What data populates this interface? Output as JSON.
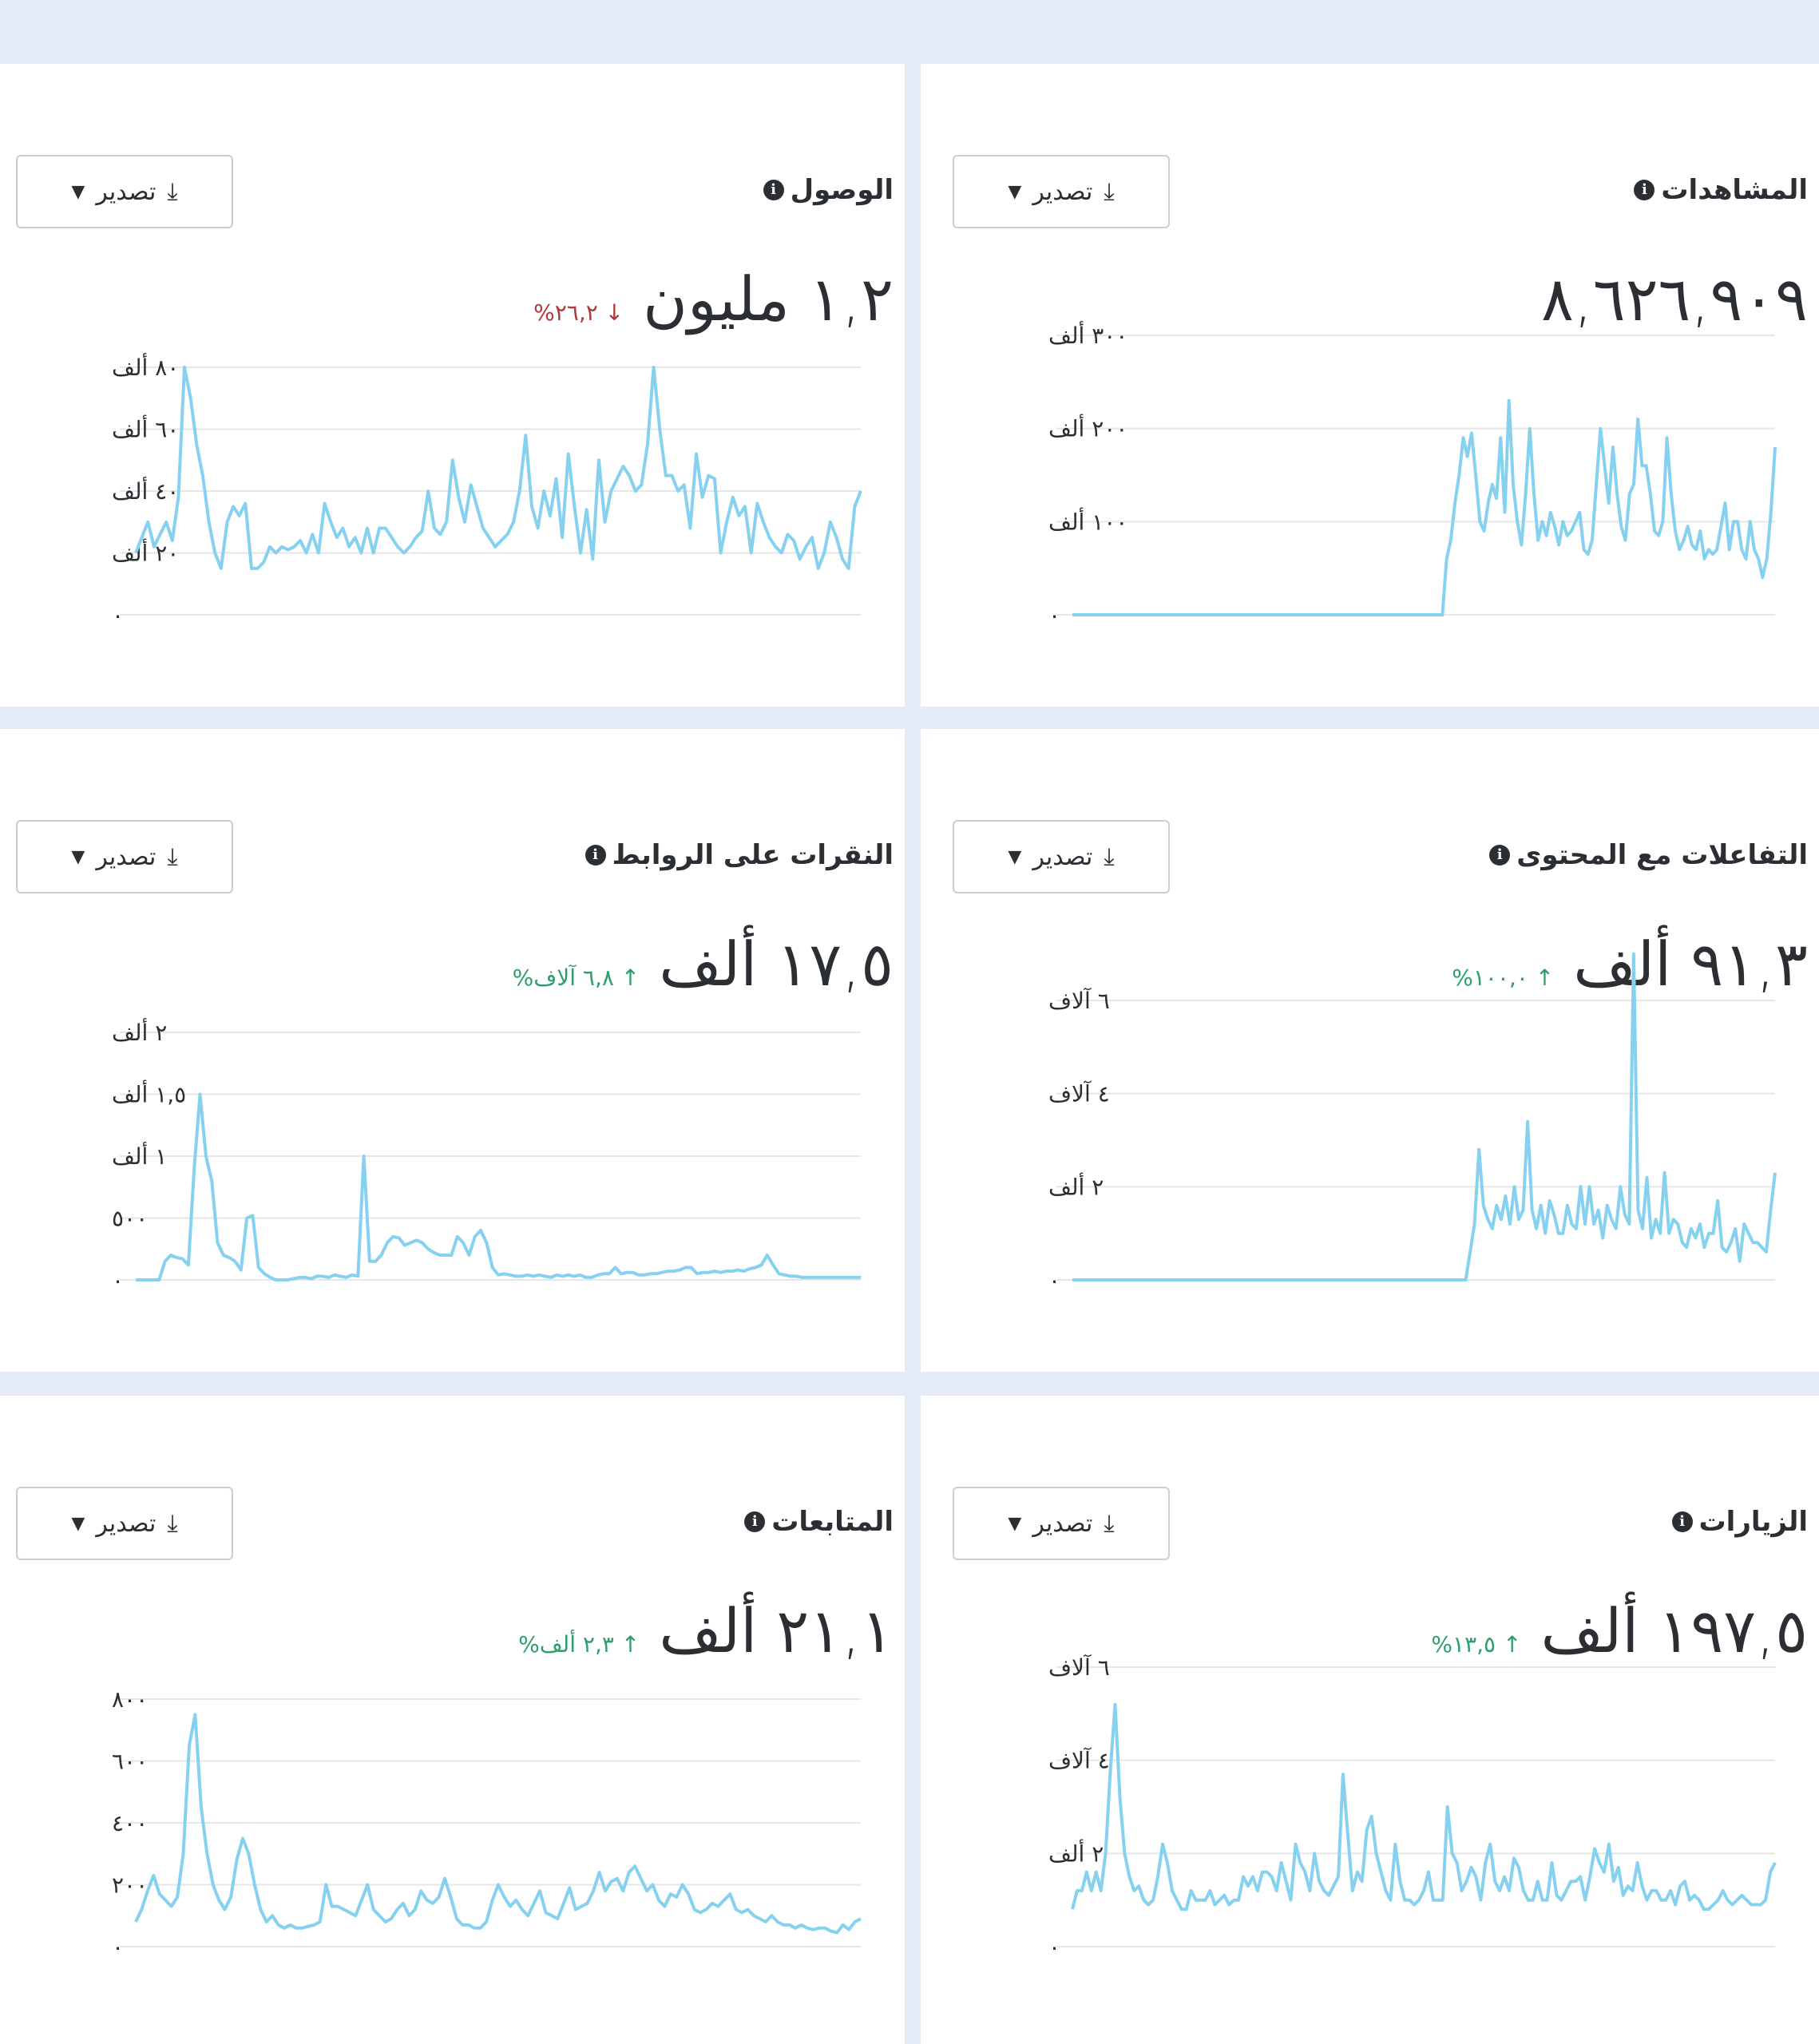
{
  "export_label": "تصدير",
  "icons": {
    "info": "info-icon",
    "export": "download-icon",
    "caret": "caret-down-icon",
    "up": "arrow-up-icon",
    "down": "arrow-down-icon"
  },
  "colors": {
    "line": "#86d1f0",
    "grid": "#e6e6e6",
    "up": "#2e9e6b",
    "down": "#b03a3a",
    "background": "#e4ebf6"
  },
  "cards": [
    {
      "id": "views",
      "title": "المشاهدات",
      "value": "٨,٦٢٦,٩٠٩",
      "delta": "",
      "trend": "",
      "chart_data": {
        "type": "line",
        "y_ticks": [
          0,
          100000,
          200000,
          300000
        ],
        "y_tick_labels": [
          "٠",
          "١٠٠ ألف",
          "٢٠٠ ألف",
          "٣٠٠ ألف"
        ],
        "ylim": [
          0,
          300000
        ],
        "values": [
          0,
          0,
          0,
          0,
          0,
          0,
          0,
          0,
          0,
          0,
          0,
          0,
          0,
          0,
          0,
          0,
          0,
          0,
          0,
          0,
          0,
          0,
          0,
          0,
          0,
          0,
          0,
          0,
          0,
          0,
          0,
          0,
          0,
          0,
          0,
          0,
          0,
          0,
          0,
          0,
          0,
          0,
          0,
          0,
          0,
          0,
          0,
          0,
          0,
          0,
          0,
          0,
          0,
          0,
          0,
          0,
          0,
          0,
          0,
          0,
          0,
          0,
          0,
          0,
          0,
          0,
          0,
          0,
          0,
          0,
          0,
          0,
          0,
          0,
          0,
          0,
          0,
          0,
          0,
          0,
          0,
          0,
          0,
          0,
          0,
          0,
          0,
          0,
          0,
          0,
          60000,
          80000,
          120000,
          150000,
          190000,
          170000,
          195000,
          150000,
          100000,
          90000,
          120000,
          140000,
          125000,
          190000,
          110000,
          230000,
          140000,
          100000,
          75000,
          130000,
          200000,
          130000,
          80000,
          100000,
          85000,
          110000,
          95000,
          75000,
          100000,
          85000,
          90000,
          100000,
          110000,
          70000,
          65000,
          80000,
          140000,
          200000,
          160000,
          120000,
          180000,
          130000,
          95000,
          80000,
          130000,
          140000,
          210000,
          160000,
          160000,
          130000,
          90000,
          85000,
          100000,
          190000,
          130000,
          90000,
          70000,
          80000,
          95000,
          75000,
          70000,
          90000,
          60000,
          70000,
          65000,
          70000,
          95000,
          120000,
          70000,
          100000,
          100000,
          70000,
          60000,
          100000,
          70000,
          60000,
          40000,
          60000,
          110000,
          180000
        ]
      }
    },
    {
      "id": "reach",
      "title": "الوصول",
      "value": "١,٢ مليون",
      "delta": "٢٦,٢%",
      "trend": "down",
      "chart_data": {
        "type": "line",
        "y_ticks": [
          0,
          20000,
          40000,
          60000,
          80000
        ],
        "y_tick_labels": [
          "٠",
          "٢٠ ألف",
          "٤٠ ألف",
          "٦٠ ألف",
          "٨٠ ألف"
        ],
        "ylim": [
          0,
          80000
        ],
        "values": [
          20000,
          25000,
          30000,
          22000,
          26000,
          30000,
          24000,
          38000,
          80000,
          70000,
          55000,
          45000,
          30000,
          20000,
          15000,
          30000,
          35000,
          32000,
          36000,
          15000,
          15000,
          17000,
          22000,
          20000,
          22000,
          21000,
          22000,
          24000,
          20000,
          26000,
          20000,
          36000,
          30000,
          25000,
          28000,
          22000,
          25000,
          20000,
          28000,
          20000,
          28000,
          28000,
          25000,
          22000,
          20000,
          22000,
          25000,
          27000,
          40000,
          28000,
          26000,
          30000,
          50000,
          38000,
          30000,
          42000,
          35000,
          28000,
          25000,
          22000,
          24000,
          26000,
          30000,
          40000,
          58000,
          35000,
          28000,
          40000,
          32000,
          44000,
          25000,
          52000,
          35000,
          20000,
          34000,
          18000,
          50000,
          30000,
          40000,
          44000,
          48000,
          45000,
          40000,
          42000,
          55000,
          80000,
          60000,
          45000,
          45000,
          40000,
          42000,
          28000,
          52000,
          38000,
          45000,
          44000,
          20000,
          30000,
          38000,
          32000,
          35000,
          20000,
          36000,
          30000,
          25000,
          22000,
          20000,
          26000,
          24000,
          18000,
          22000,
          25000,
          15000,
          20000,
          30000,
          25000,
          18000,
          15000,
          35000,
          40000
        ]
      }
    },
    {
      "id": "content-interactions",
      "title": "التفاعلات مع المحتوى",
      "value": "٩١,٣ ألف",
      "delta": "١٠٠,٠%",
      "trend": "up",
      "chart_data": {
        "type": "line",
        "y_ticks": [
          0,
          2000,
          4000,
          6000
        ],
        "y_tick_labels": [
          "٠",
          "٢ ألف",
          "٤ آلاف",
          "٦ آلاف"
        ],
        "ylim": [
          0,
          6000
        ],
        "values": [
          0,
          0,
          0,
          0,
          0,
          0,
          0,
          0,
          0,
          0,
          0,
          0,
          0,
          0,
          0,
          0,
          0,
          0,
          0,
          0,
          0,
          0,
          0,
          0,
          0,
          0,
          0,
          0,
          0,
          0,
          0,
          0,
          0,
          0,
          0,
          0,
          0,
          0,
          0,
          0,
          0,
          0,
          0,
          0,
          0,
          0,
          0,
          0,
          0,
          0,
          0,
          0,
          0,
          0,
          0,
          0,
          0,
          0,
          0,
          0,
          0,
          0,
          0,
          0,
          0,
          0,
          0,
          0,
          0,
          0,
          0,
          0,
          0,
          0,
          0,
          0,
          0,
          0,
          0,
          0,
          0,
          0,
          0,
          0,
          0,
          0,
          0,
          0,
          0,
          0,
          600,
          1200,
          2800,
          1600,
          1300,
          1100,
          1600,
          1300,
          1800,
          1200,
          2000,
          1300,
          1500,
          3400,
          1500,
          1100,
          1600,
          1000,
          1700,
          1400,
          1000,
          1000,
          1600,
          1200,
          1100,
          2000,
          1200,
          2000,
          1200,
          1500,
          900,
          1600,
          1300,
          1100,
          2000,
          1400,
          1200,
          7000,
          1500,
          1100,
          2200,
          900,
          1300,
          1000,
          2300,
          1000,
          1300,
          1200,
          800,
          700,
          1100,
          900,
          1200,
          700,
          1000,
          1000,
          1700,
          700,
          600,
          800,
          1100,
          400,
          1200,
          1000,
          800,
          800,
          700,
          600,
          1500,
          2300
        ]
      }
    },
    {
      "id": "link-clicks",
      "title": "النقرات على الروابط",
      "value": "١٧,٥ ألف",
      "delta": "٦,٨ آلاف%",
      "trend": "up",
      "chart_data": {
        "type": "line",
        "y_ticks": [
          0,
          500,
          1000,
          1500,
          2000
        ],
        "y_tick_labels": [
          "٠",
          "٥٠٠",
          "١ ألف",
          "١,٥ ألف",
          "٢ ألف"
        ],
        "ylim": [
          0,
          2000
        ],
        "values": [
          0,
          0,
          0,
          0,
          0,
          150,
          200,
          180,
          170,
          120,
          900,
          1500,
          1000,
          800,
          300,
          200,
          180,
          150,
          80,
          500,
          520,
          100,
          50,
          20,
          0,
          0,
          0,
          10,
          20,
          20,
          10,
          30,
          30,
          20,
          40,
          30,
          20,
          40,
          30,
          1000,
          150,
          150,
          200,
          300,
          350,
          340,
          280,
          300,
          320,
          300,
          250,
          220,
          200,
          200,
          200,
          350,
          300,
          200,
          350,
          400,
          300,
          100,
          40,
          50,
          40,
          30,
          30,
          40,
          30,
          40,
          30,
          20,
          40,
          30,
          40,
          30,
          40,
          20,
          20,
          40,
          50,
          50,
          100,
          50,
          60,
          60,
          40,
          40,
          50,
          50,
          60,
          70,
          70,
          80,
          100,
          100,
          50,
          60,
          60,
          70,
          60,
          70,
          70,
          80,
          70,
          90,
          100,
          120,
          200,
          120,
          50,
          40,
          30,
          30,
          20,
          20,
          20,
          20,
          20,
          20,
          20,
          20,
          20,
          20,
          20
        ]
      }
    },
    {
      "id": "visits",
      "title": "الزيارات",
      "value": "١٩٧,٥ ألف",
      "delta": "١٣,٥%",
      "trend": "up",
      "chart_data": {
        "type": "line",
        "y_ticks": [
          0,
          2000,
          4000,
          6000
        ],
        "y_tick_labels": [
          "٠",
          "٢ ألف",
          "٤ آلاف",
          "٦ آلاف"
        ],
        "ylim": [
          0,
          6000
        ],
        "values": [
          800,
          1200,
          1200,
          1600,
          1200,
          1600,
          1200,
          2000,
          3800,
          5200,
          3200,
          2000,
          1500,
          1200,
          1300,
          1000,
          900,
          1000,
          1500,
          2200,
          1800,
          1200,
          1000,
          800,
          800,
          1200,
          1000,
          1000,
          1000,
          1200,
          900,
          1000,
          1100,
          900,
          1000,
          1000,
          1500,
          1300,
          1500,
          1200,
          1600,
          1600,
          1500,
          1200,
          1800,
          1400,
          1000,
          2200,
          1800,
          1600,
          1200,
          2000,
          1400,
          1200,
          1100,
          1300,
          1500,
          3700,
          2400,
          1200,
          1600,
          1400,
          2500,
          2800,
          2000,
          1600,
          1200,
          1000,
          2200,
          1400,
          1000,
          1000,
          900,
          1000,
          1200,
          1600,
          1000,
          1000,
          1000,
          3000,
          2000,
          1800,
          1200,
          1400,
          1700,
          1500,
          1000,
          1800,
          2200,
          1400,
          1200,
          1500,
          1200,
          1900,
          1700,
          1200,
          1000,
          1000,
          1400,
          1000,
          1000,
          1800,
          1100,
          1000,
          1200,
          1400,
          1400,
          1500,
          1000,
          1500,
          2100,
          1800,
          1600,
          2200,
          1400,
          1700,
          1100,
          1300,
          1200,
          1800,
          1300,
          1000,
          1200,
          1200,
          1000,
          1000,
          1200,
          900,
          1300,
          1400,
          1000,
          1100,
          1000,
          800,
          800,
          900,
          1000,
          1200,
          1000,
          900,
          1000,
          1100,
          1000,
          900,
          900,
          900,
          1000,
          1600,
          1800
        ]
      }
    },
    {
      "id": "follows",
      "title": "المتابعات",
      "value": "٢١,١ ألف",
      "delta": "٢,٣ ألف%",
      "trend": "up",
      "chart_data": {
        "type": "line",
        "y_ticks": [
          0,
          200,
          400,
          600,
          800
        ],
        "y_tick_labels": [
          "٠",
          "٢٠٠",
          "٤٠٠",
          "٦٠٠",
          "٨٠٠"
        ],
        "ylim": [
          0,
          800
        ],
        "values": [
          80,
          120,
          180,
          230,
          170,
          150,
          130,
          160,
          300,
          650,
          750,
          450,
          300,
          200,
          150,
          120,
          160,
          280,
          350,
          300,
          200,
          120,
          80,
          100,
          70,
          60,
          70,
          60,
          60,
          65,
          70,
          80,
          200,
          130,
          130,
          120,
          110,
          100,
          150,
          200,
          120,
          100,
          80,
          90,
          120,
          140,
          100,
          120,
          180,
          150,
          140,
          160,
          220,
          160,
          90,
          70,
          70,
          60,
          60,
          80,
          150,
          200,
          160,
          130,
          150,
          120,
          100,
          140,
          180,
          110,
          100,
          90,
          140,
          190,
          120,
          130,
          140,
          180,
          240,
          180,
          210,
          220,
          180,
          240,
          260,
          220,
          180,
          200,
          150,
          130,
          170,
          160,
          200,
          170,
          120,
          110,
          120,
          140,
          130,
          150,
          170,
          120,
          110,
          120,
          100,
          90,
          80,
          100,
          80,
          70,
          70,
          60,
          70,
          60,
          55,
          60,
          60,
          50,
          45,
          70,
          55,
          80,
          90
        ]
      }
    }
  ]
}
